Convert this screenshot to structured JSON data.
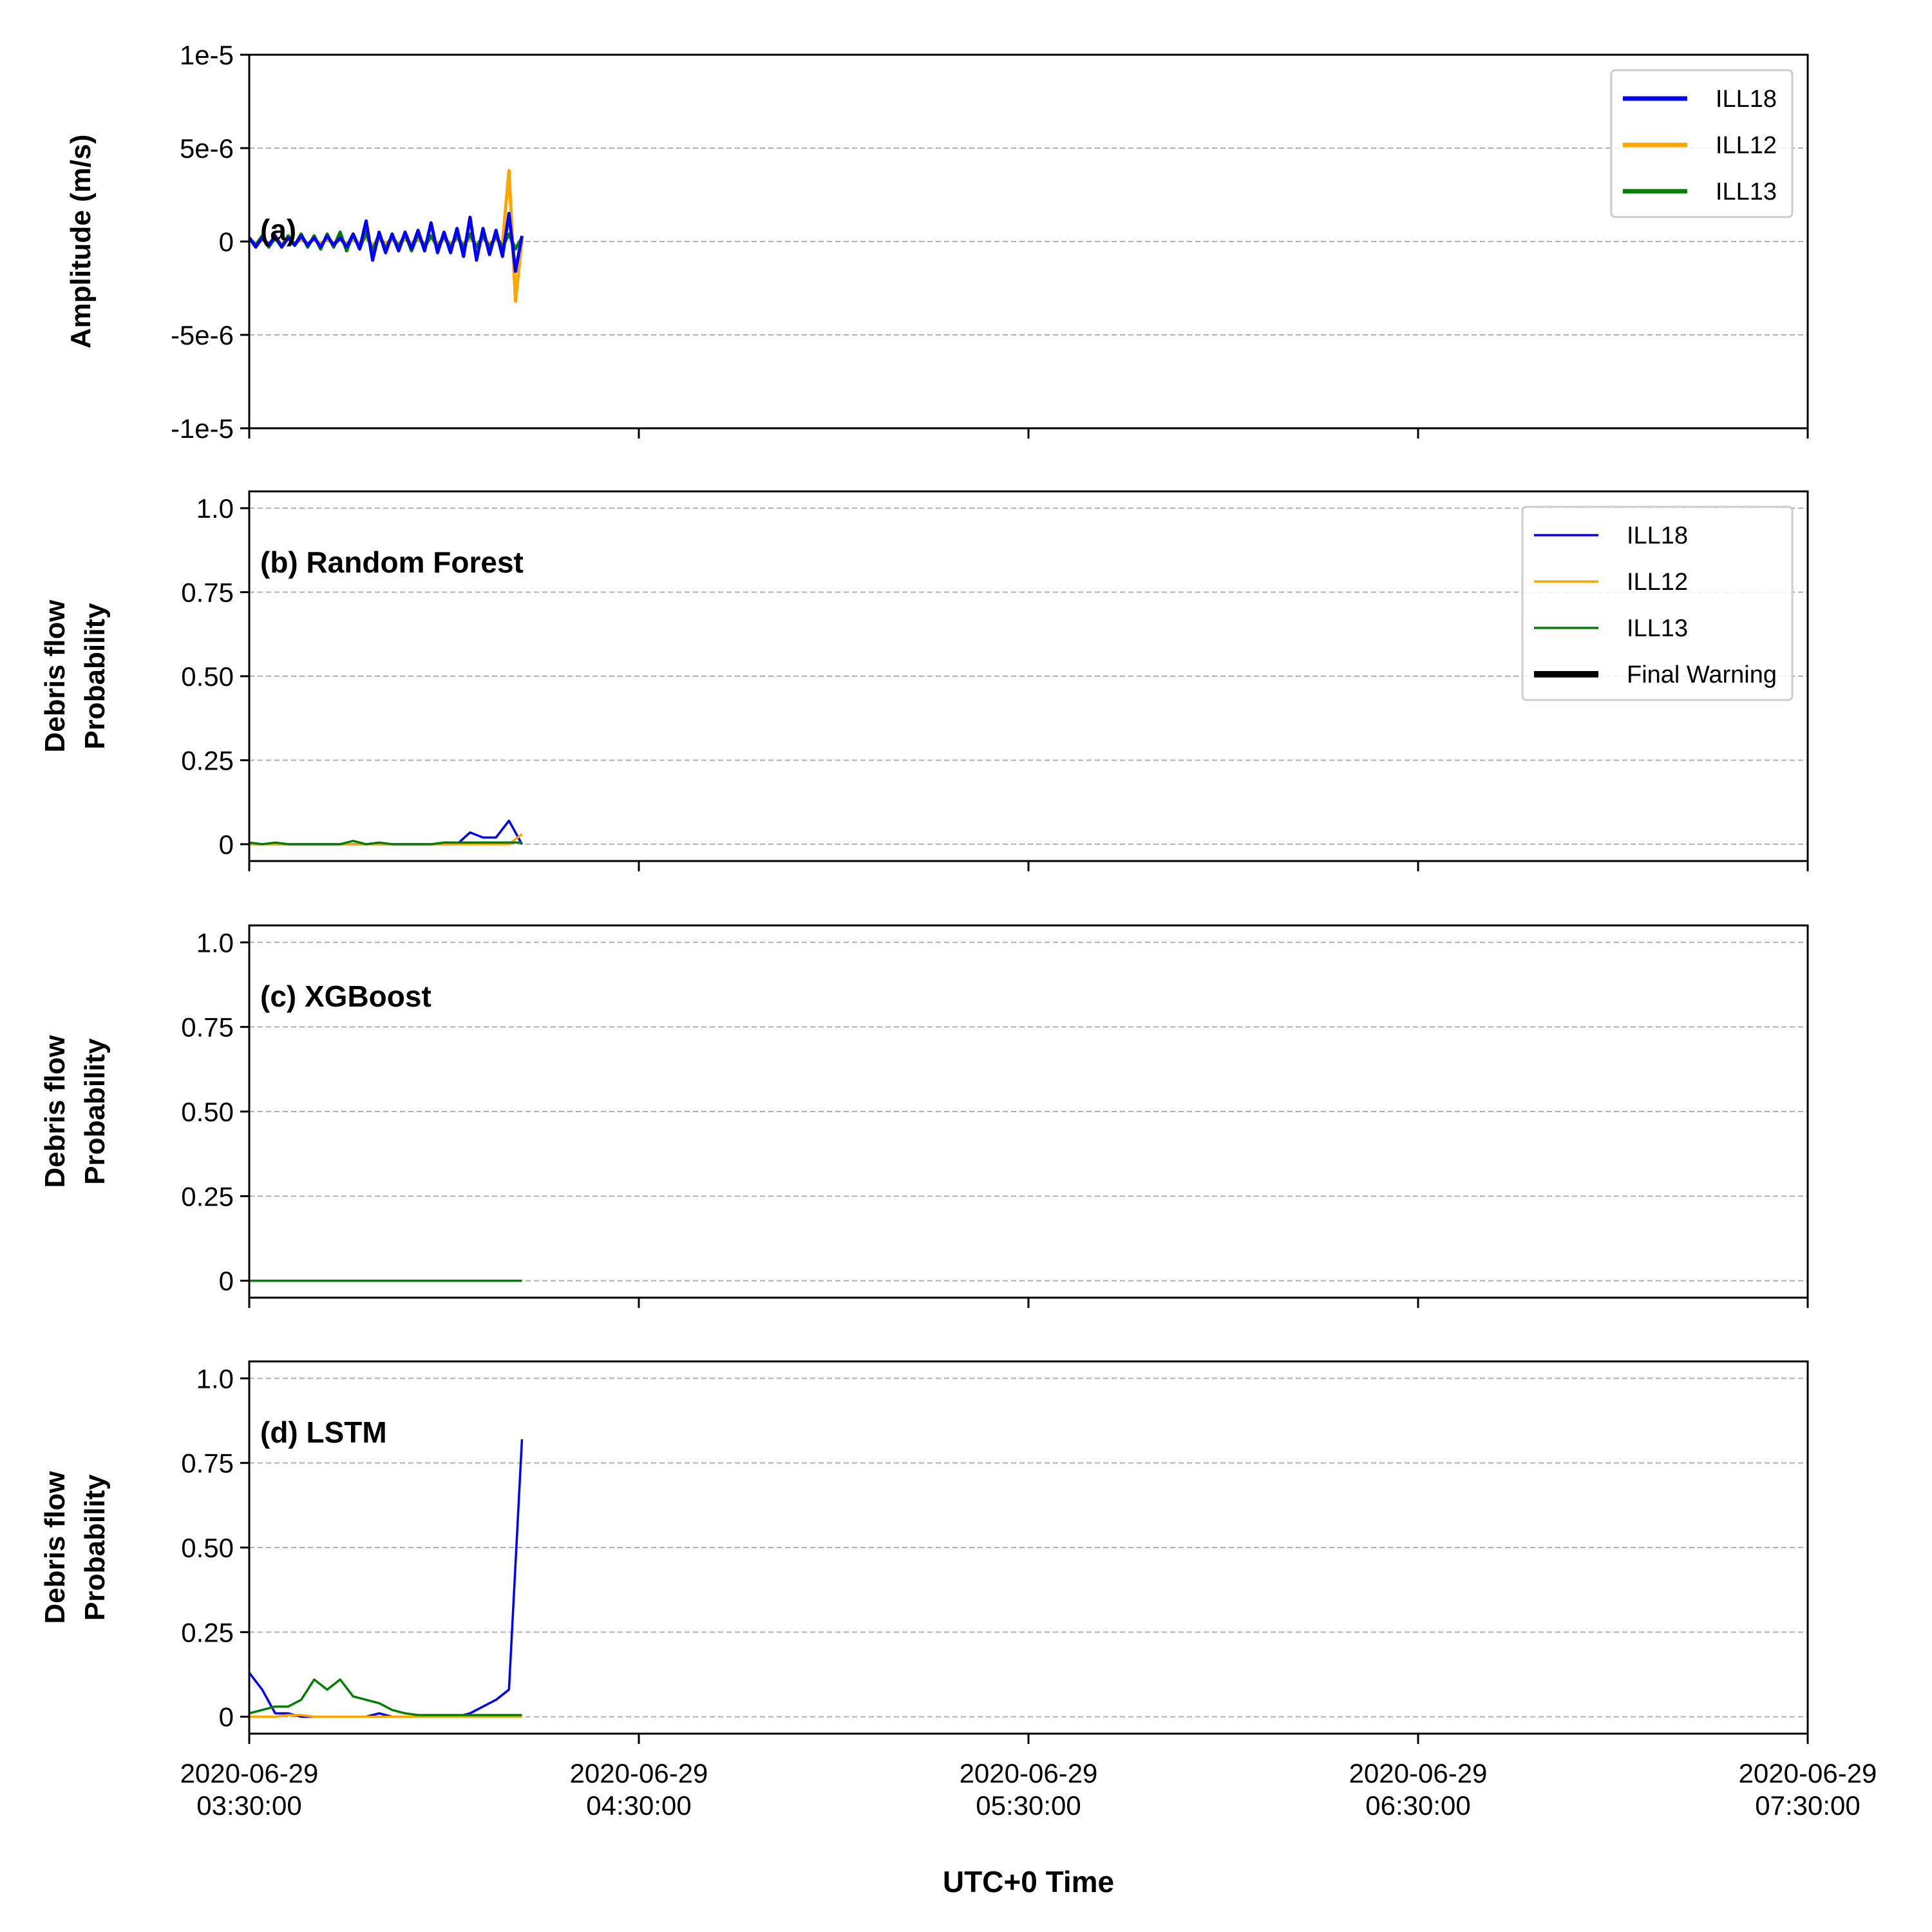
{
  "chart_data": [
    {
      "type": "line",
      "annotation": "(a)",
      "ylabel": "Amplitude (m/s)",
      "x": [
        "2020-06-29 03:30:00",
        "2020-06-29 03:31:00",
        "2020-06-29 03:32:00",
        "2020-06-29 03:33:00",
        "2020-06-29 03:34:00",
        "2020-06-29 03:35:00",
        "2020-06-29 03:36:00",
        "2020-06-29 03:37:00",
        "2020-06-29 03:38:00",
        "2020-06-29 03:39:00",
        "2020-06-29 03:40:00",
        "2020-06-29 03:41:00",
        "2020-06-29 03:42:00",
        "2020-06-29 03:43:00",
        "2020-06-29 03:44:00",
        "2020-06-29 03:45:00",
        "2020-06-29 03:46:00",
        "2020-06-29 03:47:00",
        "2020-06-29 03:48:00",
        "2020-06-29 03:49:00",
        "2020-06-29 03:50:00",
        "2020-06-29 03:51:00",
        "2020-06-29 03:52:00",
        "2020-06-29 03:53:00",
        "2020-06-29 03:54:00",
        "2020-06-29 03:55:00",
        "2020-06-29 03:56:00",
        "2020-06-29 03:57:00",
        "2020-06-29 03:58:00",
        "2020-06-29 03:59:00",
        "2020-06-29 04:00:00",
        "2020-06-29 04:01:00",
        "2020-06-29 04:02:00",
        "2020-06-29 04:03:00",
        "2020-06-29 04:04:00",
        "2020-06-29 04:05:00",
        "2020-06-29 04:06:00",
        "2020-06-29 04:07:00",
        "2020-06-29 04:08:00",
        "2020-06-29 04:09:00",
        "2020-06-29 04:10:00",
        "2020-06-29 04:11:00",
        "2020-06-29 04:12:00"
      ],
      "series": [
        {
          "name": "ILL12",
          "color": "#ffa500",
          "values": [
            1e-07,
            -1e-07,
            1e-07,
            -1e-07,
            1e-07,
            -1e-07,
            1e-07,
            -1e-07,
            1e-07,
            -1e-07,
            1e-07,
            -1e-07,
            1e-07,
            -1e-07,
            1e-07,
            -1e-07,
            1e-07,
            -1e-07,
            2e-07,
            -2e-07,
            1e-07,
            -1e-07,
            1e-07,
            -1e-07,
            1e-07,
            -1e-07,
            1e-07,
            -1e-07,
            2e-07,
            -1e-07,
            1e-07,
            -1e-07,
            1e-07,
            -1e-07,
            2e-07,
            -2e-07,
            1e-07,
            -1e-07,
            1e-07,
            -1e-07,
            3.8e-06,
            -3.2e-06,
            1e-07
          ]
        },
        {
          "name": "ILL13",
          "color": "#008000",
          "values": [
            2e-07,
            -2e-07,
            3e-07,
            -3e-07,
            2e-07,
            -3e-07,
            3e-07,
            -2e-07,
            4e-07,
            -3e-07,
            3e-07,
            -4e-07,
            4e-07,
            -3e-07,
            5e-07,
            -5e-07,
            4e-07,
            -4e-07,
            5e-07,
            -5e-07,
            4e-07,
            -4e-07,
            3e-07,
            -3e-07,
            4e-07,
            -5e-07,
            4e-07,
            -3e-07,
            3e-07,
            -3e-07,
            3e-07,
            -3e-07,
            3e-07,
            -3e-07,
            4e-07,
            -3e-07,
            3e-07,
            -3e-07,
            3e-07,
            -3e-07,
            4e-07,
            -4e-07,
            2e-07
          ]
        },
        {
          "name": "ILL18",
          "color": "#0000ff",
          "values": [
            2e-07,
            -3e-07,
            2e-07,
            -2e-07,
            3e-07,
            -3e-07,
            2e-07,
            -2e-07,
            3e-07,
            -2e-07,
            2e-07,
            -3e-07,
            3e-07,
            -2e-07,
            2e-07,
            -3e-07,
            4e-07,
            -4e-07,
            1.1e-06,
            -1e-06,
            5e-07,
            -6e-07,
            4e-07,
            -5e-07,
            5e-07,
            -4e-07,
            6e-07,
            -5e-07,
            1e-06,
            -6e-07,
            5e-07,
            -6e-07,
            7e-07,
            -8e-07,
            1.3e-06,
            -1e-06,
            7e-07,
            -7e-07,
            6e-07,
            -8e-07,
            1.5e-06,
            -1.6e-06,
            3e-07
          ]
        }
      ],
      "legend_order": [
        2,
        0,
        1
      ],
      "xlim": [
        "2020-06-29 03:30:00",
        "2020-06-29 07:30:00"
      ],
      "xticks": [
        "2020-06-29 03:30:00",
        "2020-06-29 04:30:00",
        "2020-06-29 05:30:00",
        "2020-06-29 06:30:00",
        "2020-06-29 07:30:00"
      ],
      "ylim": [
        -1e-05,
        1e-05
      ],
      "yticks": [
        {
          "value": -1e-05,
          "label": "-1e-5"
        },
        {
          "value": -5e-06,
          "label": "-5e-6"
        },
        0,
        {
          "value": 5e-06,
          "label": "5e-6"
        },
        {
          "value": 1e-05,
          "label": "1e-5"
        }
      ],
      "grid": true,
      "legend": "upper right",
      "linewidth": 5,
      "legend_linewidth": 7,
      "show_xticklabels": false
    },
    {
      "type": "line",
      "annotation": "(b) Random Forest",
      "ylabel": "Debris flow\nProbability",
      "x": [
        "2020-06-29 03:30:00",
        "2020-06-29 03:32:00",
        "2020-06-29 03:34:00",
        "2020-06-29 03:36:00",
        "2020-06-29 03:38:00",
        "2020-06-29 03:40:00",
        "2020-06-29 03:42:00",
        "2020-06-29 03:44:00",
        "2020-06-29 03:46:00",
        "2020-06-29 03:48:00",
        "2020-06-29 03:50:00",
        "2020-06-29 03:52:00",
        "2020-06-29 03:54:00",
        "2020-06-29 03:56:00",
        "2020-06-29 03:58:00",
        "2020-06-29 04:00:00",
        "2020-06-29 04:02:00",
        "2020-06-29 04:04:00",
        "2020-06-29 04:06:00",
        "2020-06-29 04:08:00",
        "2020-06-29 04:10:00",
        "2020-06-29 04:12:00"
      ],
      "series": [
        {
          "name": "ILL18",
          "color": "#0000ff",
          "values": [
            0,
            0,
            0,
            0,
            0,
            0,
            0,
            0,
            0,
            0,
            0,
            0,
            0,
            0,
            0,
            0,
            0,
            0.035,
            0.02,
            0.02,
            0.07,
            0
          ]
        },
        {
          "name": "ILL12",
          "color": "#ffa500",
          "values": [
            0,
            0,
            0,
            0,
            0,
            0,
            0,
            0,
            0,
            0,
            0,
            0,
            0,
            0,
            0,
            0,
            0,
            0,
            0,
            0,
            0,
            0.03
          ]
        },
        {
          "name": "ILL13",
          "color": "#008000",
          "values": [
            0.005,
            0,
            0.005,
            0,
            0,
            0,
            0,
            0,
            0.01,
            0,
            0.005,
            0,
            0,
            0,
            0,
            0.005,
            0.005,
            0.005,
            0.005,
            0.005,
            0.005,
            0.005
          ]
        }
      ],
      "legend_extra": {
        "name": "Final Warning",
        "color": "#000000"
      },
      "xlim": [
        "2020-06-29 03:30:00",
        "2020-06-29 07:30:00"
      ],
      "xticks": [
        "2020-06-29 03:30:00",
        "2020-06-29 04:30:00",
        "2020-06-29 05:30:00",
        "2020-06-29 06:30:00",
        "2020-06-29 07:30:00"
      ],
      "ylim": [
        -0.05,
        1.05
      ],
      "yticks": [
        0,
        0.25,
        {
          "value": 0.5,
          "label": "0.50"
        },
        0.75,
        {
          "value": 1,
          "label": "1.0"
        }
      ],
      "grid": true,
      "legend": "upper right",
      "linewidth": 3.5,
      "legend_linewidth": 3.5,
      "show_xticklabels": false
    },
    {
      "type": "line",
      "annotation": "(c) XGBoost",
      "ylabel": "Debris flow\nProbability",
      "x": [
        "2020-06-29 03:30:00",
        "2020-06-29 03:32:00",
        "2020-06-29 03:34:00",
        "2020-06-29 03:36:00",
        "2020-06-29 03:38:00",
        "2020-06-29 03:40:00",
        "2020-06-29 03:42:00",
        "2020-06-29 03:44:00",
        "2020-06-29 03:46:00",
        "2020-06-29 03:48:00",
        "2020-06-29 03:50:00",
        "2020-06-29 03:52:00",
        "2020-06-29 03:54:00",
        "2020-06-29 03:56:00",
        "2020-06-29 03:58:00",
        "2020-06-29 04:00:00",
        "2020-06-29 04:02:00",
        "2020-06-29 04:04:00",
        "2020-06-29 04:06:00",
        "2020-06-29 04:08:00",
        "2020-06-29 04:10:00",
        "2020-06-29 04:12:00"
      ],
      "series": [
        {
          "name": "ILL18",
          "color": "#0000ff",
          "values": [
            0,
            0,
            0,
            0,
            0,
            0,
            0,
            0,
            0,
            0,
            0,
            0,
            0,
            0,
            0,
            0,
            0,
            0,
            0,
            0,
            0,
            0
          ]
        },
        {
          "name": "ILL12",
          "color": "#ffa500",
          "values": [
            0,
            0,
            0,
            0,
            0,
            0,
            0,
            0,
            0,
            0,
            0,
            0,
            0,
            0,
            0,
            0,
            0,
            0,
            0,
            0,
            0,
            0
          ]
        },
        {
          "name": "ILL13",
          "color": "#008000",
          "values": [
            0,
            0,
            0,
            0,
            0,
            0,
            0,
            0,
            0,
            0,
            0,
            0,
            0,
            0,
            0,
            0,
            0,
            0,
            0,
            0,
            0,
            0
          ]
        }
      ],
      "xlim": [
        "2020-06-29 03:30:00",
        "2020-06-29 07:30:00"
      ],
      "xticks": [
        "2020-06-29 03:30:00",
        "2020-06-29 04:30:00",
        "2020-06-29 05:30:00",
        "2020-06-29 06:30:00",
        "2020-06-29 07:30:00"
      ],
      "ylim": [
        -0.05,
        1.05
      ],
      "yticks": [
        0,
        0.25,
        {
          "value": 0.5,
          "label": "0.50"
        },
        0.75,
        {
          "value": 1,
          "label": "1.0"
        }
      ],
      "grid": true,
      "linewidth": 3.5,
      "show_xticklabels": false
    },
    {
      "type": "line",
      "annotation": "(d) LSTM",
      "ylabel": "Debris flow\nProbability",
      "xlabel": "UTC+0 Time",
      "x": [
        "2020-06-29 03:30:00",
        "2020-06-29 03:32:00",
        "2020-06-29 03:34:00",
        "2020-06-29 03:36:00",
        "2020-06-29 03:38:00",
        "2020-06-29 03:40:00",
        "2020-06-29 03:42:00",
        "2020-06-29 03:44:00",
        "2020-06-29 03:46:00",
        "2020-06-29 03:48:00",
        "2020-06-29 03:50:00",
        "2020-06-29 03:52:00",
        "2020-06-29 03:54:00",
        "2020-06-29 03:56:00",
        "2020-06-29 03:58:00",
        "2020-06-29 04:00:00",
        "2020-06-29 04:02:00",
        "2020-06-29 04:04:00",
        "2020-06-29 04:06:00",
        "2020-06-29 04:08:00",
        "2020-06-29 04:10:00",
        "2020-06-29 04:12:00"
      ],
      "series": [
        {
          "name": "ILL18",
          "color": "#0000ff",
          "values": [
            0.13,
            0.08,
            0.01,
            0.01,
            0,
            0,
            0,
            0,
            0,
            0,
            0.01,
            0,
            0,
            0,
            0,
            0,
            0,
            0.01,
            0.03,
            0.05,
            0.08,
            0.82
          ]
        },
        {
          "name": "ILL12",
          "color": "#ffa500",
          "values": [
            0,
            0,
            0,
            0.005,
            0.005,
            0,
            0,
            0,
            0,
            0,
            0,
            0,
            0,
            0,
            0,
            0,
            0,
            0,
            0,
            0,
            0,
            0
          ]
        },
        {
          "name": "ILL13",
          "color": "#008000",
          "values": [
            0.01,
            0.02,
            0.03,
            0.03,
            0.05,
            0.11,
            0.08,
            0.11,
            0.06,
            0.05,
            0.04,
            0.02,
            0.01,
            0.005,
            0.005,
            0.005,
            0.005,
            0.005,
            0.005,
            0.005,
            0.005,
            0.005
          ]
        }
      ],
      "xlim": [
        "2020-06-29 03:30:00",
        "2020-06-29 07:30:00"
      ],
      "xticks": [
        "2020-06-29 03:30:00",
        "2020-06-29 04:30:00",
        "2020-06-29 05:30:00",
        "2020-06-29 06:30:00",
        "2020-06-29 07:30:00"
      ],
      "ylim": [
        -0.05,
        1.05
      ],
      "yticks": [
        0,
        0.25,
        {
          "value": 0.5,
          "label": "0.50"
        },
        0.75,
        {
          "value": 1,
          "label": "1.0"
        }
      ],
      "grid": true,
      "linewidth": 3.5,
      "show_xticklabels": true
    }
  ]
}
